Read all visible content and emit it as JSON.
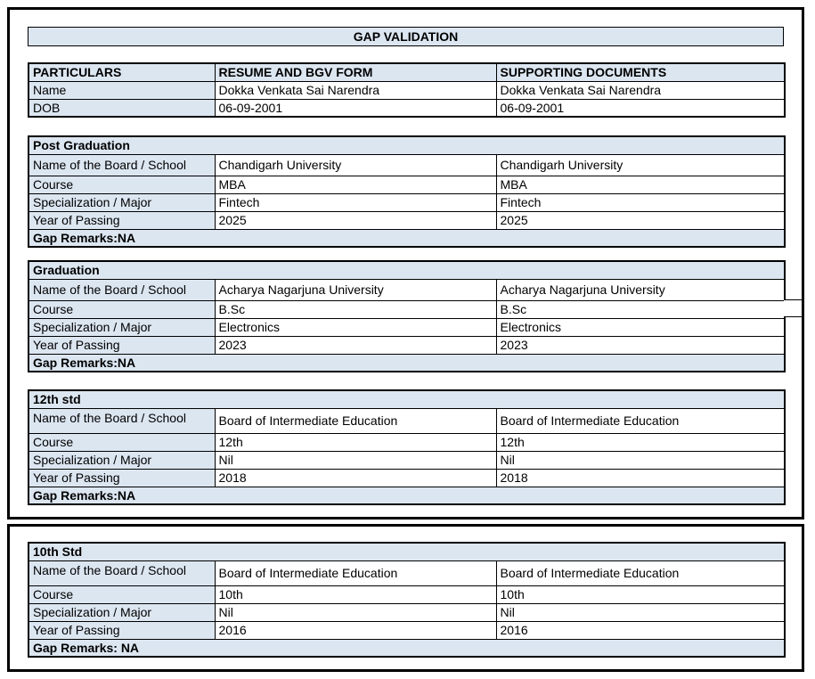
{
  "document": {
    "title": "GAP VALIDATION"
  },
  "colors": {
    "cell_fill": "#dce6f1",
    "border": "#000000",
    "text": "#000000",
    "background": "#ffffff"
  },
  "particulars": {
    "headers": [
      "PARTICULARS",
      "RESUME AND BGV FORM",
      "SUPPORTING DOCUMENTS"
    ],
    "rows": [
      {
        "label": "Name",
        "resume": "Dokka Venkata Sai Narendra",
        "supporting": "Dokka Venkata Sai Narendra"
      },
      {
        "label": "DOB",
        "resume": "06-09-2001",
        "supporting": "06-09-2001"
      }
    ]
  },
  "sections": [
    {
      "title": "Post Graduation",
      "rows": [
        {
          "label": "Name of the Board / School",
          "resume": "Chandigarh University",
          "supporting": "Chandigarh University"
        },
        {
          "label": "Course",
          "resume": "MBA",
          "supporting": "MBA"
        },
        {
          "label": "Specialization / Major",
          "resume": "Fintech",
          "supporting": "Fintech"
        },
        {
          "label": "Year of Passing",
          "resume": "2025",
          "supporting": "2025"
        }
      ],
      "gap_remarks": "Gap Remarks:NA"
    },
    {
      "title": "Graduation",
      "rows": [
        {
          "label": "Name of the Board / School",
          "resume": "Acharya Nagarjuna University",
          "supporting": "Acharya Nagarjuna University"
        },
        {
          "label": "Course",
          "resume": "B.Sc",
          "supporting": "B.Sc"
        },
        {
          "label": "Specialization / Major",
          "resume": "Electronics",
          "supporting": "Electronics"
        },
        {
          "label": "Year of Passing",
          "resume": "2023",
          "supporting": "2023"
        }
      ],
      "gap_remarks": "Gap Remarks:NA"
    },
    {
      "title": "12th std",
      "rows": [
        {
          "label": "Name of the Board / School",
          "resume": "Board of Intermediate Education",
          "supporting": "Board of Intermediate Education"
        },
        {
          "label": "Course",
          "resume": "12th",
          "supporting": "12th"
        },
        {
          "label": "Specialization / Major",
          "resume": "Nil",
          "supporting": "Nil"
        },
        {
          "label": "Year of Passing",
          "resume": "2018",
          "supporting": "2018"
        }
      ],
      "gap_remarks": "Gap Remarks:NA"
    },
    {
      "title": "10th Std",
      "rows": [
        {
          "label": "Name of the Board / School",
          "resume": "Board of Intermediate Education",
          "supporting": "Board of Intermediate Education"
        },
        {
          "label": "Course",
          "resume": "10th",
          "supporting": "10th"
        },
        {
          "label": "Specialization / Major",
          "resume": "Nil",
          "supporting": "Nil"
        },
        {
          "label": "Year of Passing",
          "resume": "2016",
          "supporting": "2016"
        }
      ],
      "gap_remarks": "Gap Remarks: NA"
    }
  ]
}
